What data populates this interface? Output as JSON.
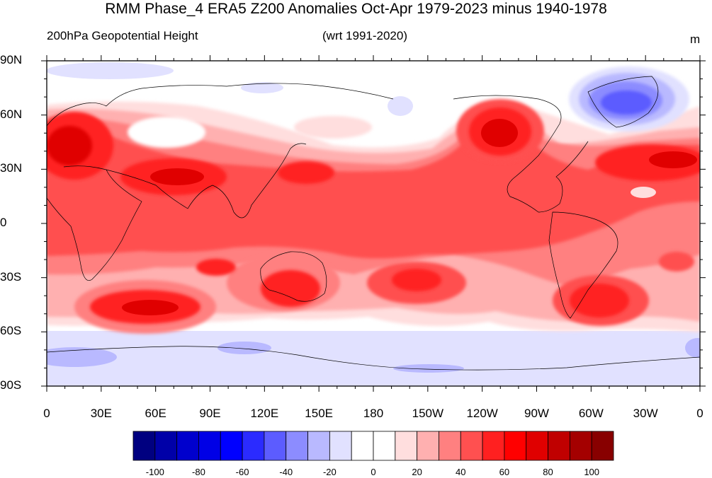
{
  "title": "RMM Phase_4 ERA5 Z200 Anomalies Oct-Apr 1979-2023 minus 1940-1978",
  "subtitle_left": "200hPa Geopotential Height",
  "subtitle_center": "(wrt 1991-2020)",
  "units": "m",
  "lat_labels": [
    "90N",
    "60N",
    "30N",
    "0",
    "30S",
    "60S",
    "90S"
  ],
  "lon_labels": [
    "0",
    "30E",
    "60E",
    "90E",
    "120E",
    "150E",
    "180",
    "150W",
    "120W",
    "90W",
    "60W",
    "30W",
    "0"
  ],
  "colorbar": {
    "colors": [
      "#000080",
      "#0000a8",
      "#0000cd",
      "#0000e6",
      "#0000ff",
      "#2b2bff",
      "#5c5cff",
      "#8c8cff",
      "#b9b9ff",
      "#e1e1ff",
      "#ffffff",
      "#ffffff",
      "#ffdede",
      "#ffb0b0",
      "#ff8080",
      "#ff5050",
      "#ff2020",
      "#ff0000",
      "#e00000",
      "#c00000",
      "#a40000",
      "#880000"
    ],
    "tick_labels": [
      "-100",
      "-80",
      "-60",
      "-40",
      "-20",
      "0",
      "20",
      "40",
      "60",
      "80",
      "100"
    ]
  },
  "colors": {
    "very_light_red": "#ffdede",
    "light_red": "#ffb0b0",
    "medium_red": "#ff8080",
    "red": "#ff5050",
    "strong_red": "#ff2020",
    "dark_red": "#e00000",
    "light_blue": "#e1e1ff",
    "medium_blue": "#b9b9ff",
    "blue": "#8c8cff",
    "strong_blue": "#5c5cff"
  }
}
